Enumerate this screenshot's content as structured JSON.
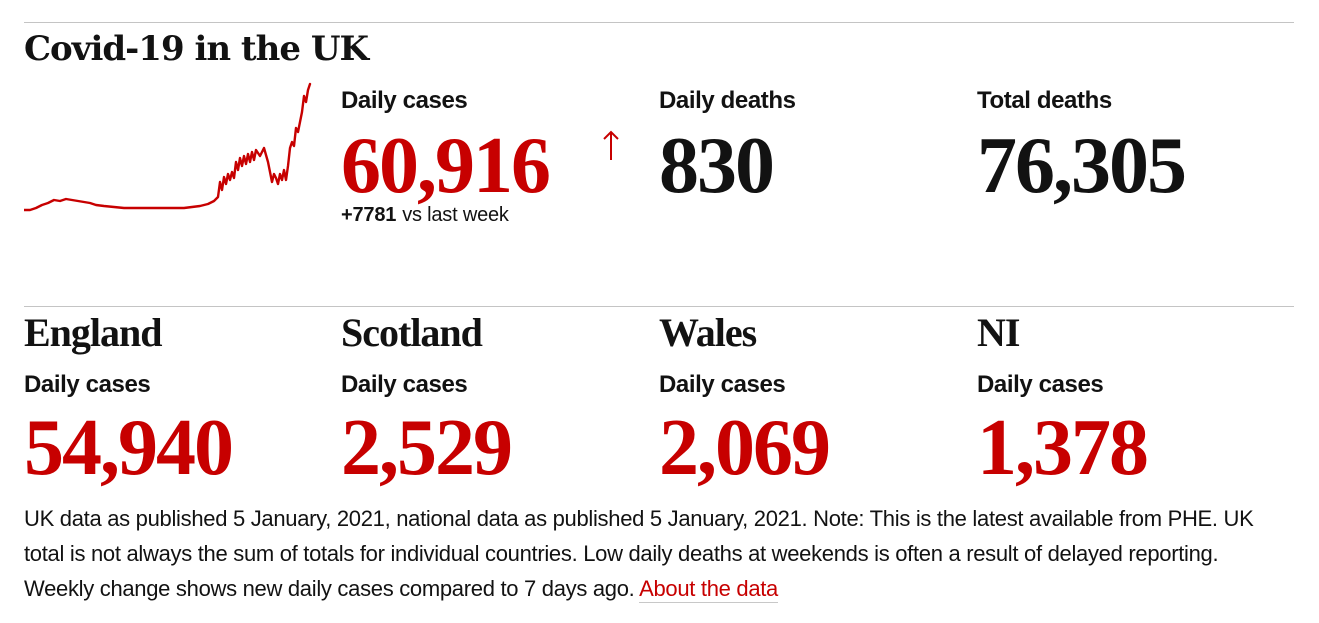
{
  "title": "Covid-19 in the UK",
  "accent_color": "#c70000",
  "headline": {
    "daily_cases": {
      "label": "Daily cases",
      "value": "60,916",
      "trend": "up-arrow-icon",
      "change": "+7781",
      "change_suffix": "vs last week"
    },
    "daily_deaths": {
      "label": "Daily deaths",
      "value": "830"
    },
    "total_deaths": {
      "label": "Total deaths",
      "value": "76,305"
    }
  },
  "regions": [
    {
      "name": "England",
      "label": "Daily cases",
      "value": "54,940"
    },
    {
      "name": "Scotland",
      "label": "Daily cases",
      "value": "2,529"
    },
    {
      "name": "Wales",
      "label": "Daily cases",
      "value": "2,069"
    },
    {
      "name": "NI",
      "label": "Daily cases",
      "value": "1,378"
    }
  ],
  "note": {
    "text": "UK data as published 5 January, 2021, national data as published 5 January, 2021. Note: This is the latest available from PHE. UK total is not always the sum of totals for individual countries. Low daily deaths at weekends is often a result of delayed reporting. Weekly change shows new daily cases compared to 7 days ago.",
    "link_label": "About the data"
  }
}
